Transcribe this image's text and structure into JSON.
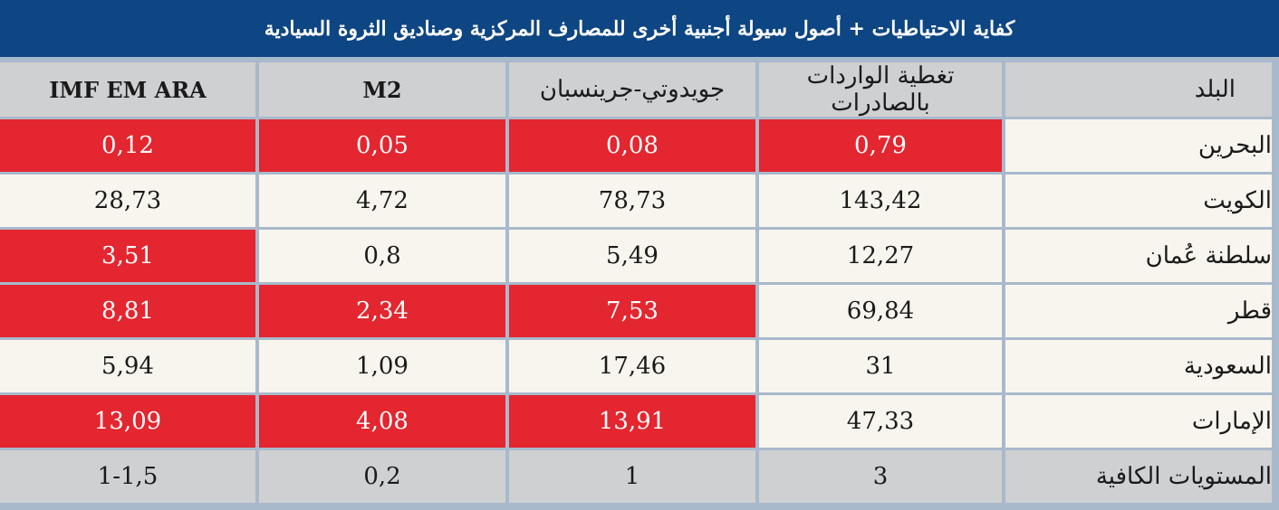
{
  "title": "كفاية الاحتياطيات + أصول سيولة أجنبية أخرى للمصارف المركزية وصناديق الثروة السيادية",
  "colors": {
    "header_bg": "#0e4583",
    "flag_red": "#e3262f",
    "row_bg": "#f7f5ee",
    "gray_bg": "#cfd0d2"
  },
  "headers": {
    "country": "البلد",
    "imports": "تغطية الواردات بالصادرات",
    "gj": "جويدوتي-جرينسبان",
    "m2": "M2",
    "imf": "IMF EM ARA"
  },
  "rows": [
    {
      "country": "البحرين",
      "imports": "0,79",
      "gj": "0,08",
      "m2": "0,05",
      "imf": "0,12",
      "flags": {
        "imports": true,
        "gj": true,
        "m2": true,
        "imf": true
      }
    },
    {
      "country": "الكويت",
      "imports": "143,42",
      "gj": "78,73",
      "m2": "4,72",
      "imf": "28,73",
      "flags": {
        "imports": false,
        "gj": false,
        "m2": false,
        "imf": false
      }
    },
    {
      "country": "سلطنة عُمان",
      "imports": "12,27",
      "gj": "5,49",
      "m2": "0,8",
      "imf": "3,51",
      "flags": {
        "imports": false,
        "gj": false,
        "m2": false,
        "imf": true
      }
    },
    {
      "country": "قطر",
      "imports": "69,84",
      "gj": "7,53",
      "m2": "2,34",
      "imf": "8,81",
      "flags": {
        "imports": false,
        "gj": true,
        "m2": true,
        "imf": true
      }
    },
    {
      "country": "السعودية",
      "imports": "31",
      "gj": "17,46",
      "m2": "1,09",
      "imf": "5,94",
      "flags": {
        "imports": false,
        "gj": false,
        "m2": false,
        "imf": false
      }
    },
    {
      "country": "الإمارات",
      "imports": "47,33",
      "gj": "13,91",
      "m2": "4,08",
      "imf": "13,09",
      "flags": {
        "imports": false,
        "gj": true,
        "m2": true,
        "imf": true
      }
    }
  ],
  "adequacy": {
    "label": "المستويات الكافية",
    "imports": "3",
    "gj": "1",
    "m2": "0,2",
    "imf": "1-1,5"
  }
}
